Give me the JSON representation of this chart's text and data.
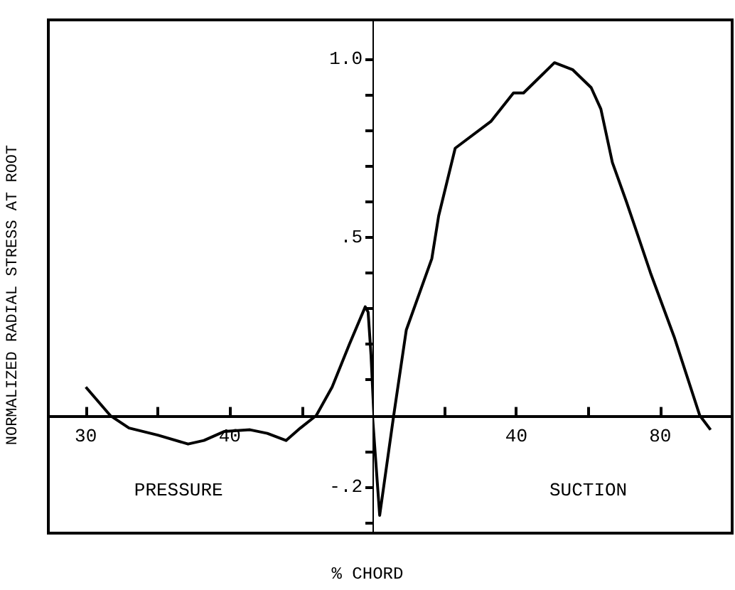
{
  "chart_data": [
    {
      "type": "line",
      "xlabel": "% CHORD",
      "ylabel": "NORMALIZED RADIAL STRESS AT ROOT",
      "x": [
        30,
        31.7,
        33,
        35,
        37.1,
        38.2,
        39.6,
        41.4,
        42.6,
        43.9,
        44.9,
        46,
        47.1,
        48.3,
        49.4,
        49.6,
        49.8,
        50
      ],
      "series": [
        {
          "color": "#000000",
          "values": [
            0.08,
            0,
            -0.035,
            -0.055,
            -0.08,
            -0.07,
            -0.045,
            -0.04,
            -0.05,
            -0.07,
            -0.035,
            0,
            0.08,
            0.2,
            0.305,
            0.29,
            0.17,
            0
          ]
        }
      ],
      "xlim": [
        27.4,
        50
      ],
      "xticks": [
        30,
        {
          "value": 35,
          "label": null
        },
        40,
        {
          "value": 45,
          "label": null
        }
      ],
      "ylim": [
        -0.33,
        1.11
      ],
      "yticks": [
        {
          "value": -0.3,
          "label": null
        },
        {
          "value": -0.2,
          "label": "-.2"
        },
        {
          "value": -0.1,
          "label": null
        },
        {
          "value": 0,
          "label": null
        },
        {
          "value": 0.1,
          "label": null
        },
        {
          "value": 0.2,
          "label": null
        },
        {
          "value": 0.3,
          "label": null
        },
        {
          "value": 0.4,
          "label": null
        },
        {
          "value": 0.5,
          "label": ".5"
        },
        {
          "value": 0.6,
          "label": null
        },
        {
          "value": 0.7,
          "label": null
        },
        {
          "value": 0.8,
          "label": null
        },
        {
          "value": 0.9,
          "label": null
        },
        {
          "value": 1.0,
          "label": "1.0"
        }
      ],
      "annotations": [
        "PRESSURE"
      ],
      "grid": false,
      "marker": "none",
      "line_style": "solid"
    },
    {
      "type": "line",
      "x": [
        0,
        2,
        5.9,
        9.4,
        16.5,
        18.4,
        23,
        32.9,
        39.2,
        42,
        50.6,
        55.7,
        60.8,
        63.5,
        66.7,
        70.6,
        73.3,
        77.3,
        83.9,
        91,
        94
      ],
      "series": [
        {
          "color": "#000000",
          "values": [
            0,
            -0.28,
            0,
            0.24,
            0.44,
            0.56,
            0.75,
            0.825,
            0.905,
            0.905,
            0.99,
            0.97,
            0.92,
            0.86,
            0.71,
            0.6,
            0.52,
            0.4,
            0.22,
            0,
            -0.04
          ]
        }
      ],
      "xlim": [
        0,
        100
      ],
      "xticks": [
        {
          "value": 20,
          "label": null
        },
        40,
        {
          "value": 60,
          "label": null
        },
        80
      ],
      "ylim": [
        -0.33,
        1.11
      ],
      "tick_labels": "x",
      "annotations": [
        "SUCTION"
      ],
      "grid": false,
      "marker": "none",
      "line_style": "solid"
    }
  ]
}
